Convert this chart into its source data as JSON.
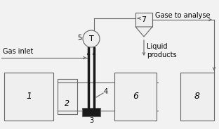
{
  "bg_color": "#f2f2f2",
  "line_color": "#666666",
  "box_color": "#efefef",
  "black_fill": "#1a1a1a",
  "labels": {
    "gas_inlet": "Gas inlet",
    "gase_analyse": "Gase to analyse",
    "liquid_products": "Liquid\nproducts",
    "num1": "1",
    "num2": "2",
    "num3": "3",
    "num4": "4",
    "num5": "5",
    "num6": "6",
    "num7": "7",
    "num8": "8",
    "T": "T"
  },
  "figsize": [
    3.12,
    1.83
  ],
  "dpi": 100
}
